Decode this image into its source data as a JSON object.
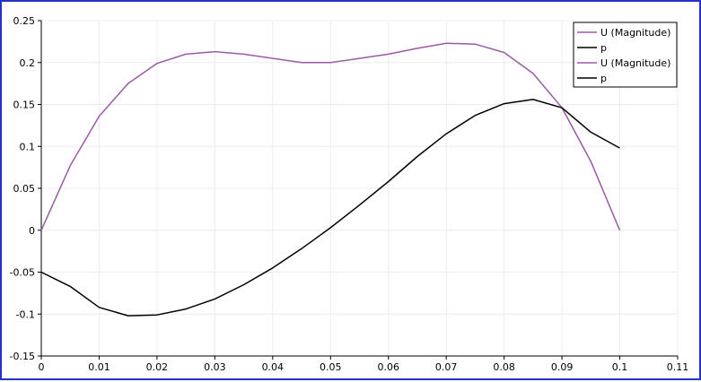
{
  "chart_data": {
    "type": "line",
    "title": "",
    "xlabel": "",
    "ylabel": "",
    "xlim": [
      0,
      0.11
    ],
    "ylim": [
      -0.15,
      0.25
    ],
    "grid": true,
    "legend_position": "top-right",
    "x_ticks": [
      "0",
      "0.01",
      "0.02",
      "0.03",
      "0.04",
      "0.05",
      "0.06",
      "0.07",
      "0.08",
      "0.09",
      "0.1",
      "0.11"
    ],
    "y_ticks": [
      "-0.15",
      "-0.1",
      "-0.05",
      "0",
      "0.05",
      "0.1",
      "0.15",
      "0.2",
      "0.25"
    ],
    "x": [
      0,
      0.005,
      0.01,
      0.015,
      0.02,
      0.025,
      0.03,
      0.035,
      0.04,
      0.045,
      0.05,
      0.055,
      0.06,
      0.065,
      0.07,
      0.075,
      0.08,
      0.085,
      0.09,
      0.095,
      0.1
    ],
    "series": [
      {
        "name": "U (Magnitude)",
        "color": "#9b5aa6",
        "values": [
          0,
          0.077,
          0.136,
          0.175,
          0.199,
          0.21,
          0.213,
          0.21,
          0.205,
          0.2,
          0.2,
          0.205,
          0.21,
          0.217,
          0.223,
          0.222,
          0.212,
          0.187,
          0.146,
          0.082,
          0
        ]
      },
      {
        "name": "p",
        "color": "#000000",
        "values": [
          -0.05,
          -0.067,
          -0.092,
          -0.102,
          -0.101,
          -0.094,
          -0.082,
          -0.065,
          -0.045,
          -0.022,
          0.003,
          0.03,
          0.058,
          0.088,
          0.115,
          0.137,
          0.151,
          0.156,
          0.146,
          0.117,
          0.098
        ]
      }
    ],
    "legend": [
      {
        "label": "U (Magnitude)",
        "color": "#9b5aa6"
      },
      {
        "label": "p",
        "color": "#000000"
      },
      {
        "label": "U (Magnitude)",
        "color": "#9b5aa6"
      },
      {
        "label": "p",
        "color": "#000000"
      }
    ]
  }
}
